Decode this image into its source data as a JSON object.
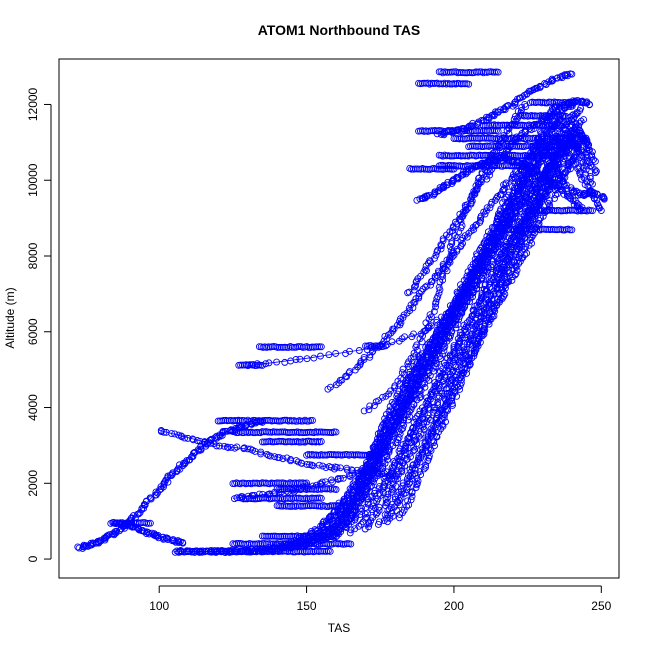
{
  "chart_data": {
    "type": "scatter",
    "title": "ATOM1 Northbound TAS",
    "xlabel": "TAS",
    "ylabel": "Altitude (m)",
    "xlim": [
      66,
      256
    ],
    "ylim": [
      -500,
      13200
    ],
    "x_ticks": [
      100,
      150,
      200,
      250
    ],
    "y_ticks": [
      0,
      2000,
      4000,
      6000,
      8000,
      10000,
      12000
    ],
    "grid": false,
    "legend": "none",
    "point_color": "#0000ff",
    "marker": "open-circle",
    "flight_profiles": [
      {
        "x": [
          73,
          76,
          80,
          84,
          88,
          92,
          96,
          100,
          104,
          108,
          112,
          116,
          120,
          124,
          128,
          132,
          135
        ],
        "y": [
          300,
          380,
          480,
          650,
          850,
          1150,
          1500,
          1850,
          2200,
          2500,
          2800,
          3050,
          3250,
          3400,
          3500,
          3580,
          3650
        ]
      },
      {
        "x": [
          105,
          115,
          125,
          135,
          145,
          155,
          160,
          165,
          168,
          172,
          175,
          180,
          185,
          190,
          195,
          200,
          205,
          210,
          215,
          220,
          225
        ],
        "y": [
          200,
          200,
          200,
          220,
          300,
          500,
          700,
          1000,
          1500,
          2200,
          2900,
          3600,
          4300,
          5000,
          5700,
          6500,
          7300,
          8100,
          8900,
          9600,
          10300
        ]
      },
      {
        "x": [
          110,
          125,
          140,
          150,
          158,
          162,
          165,
          168,
          171,
          174,
          177,
          181,
          185,
          190,
          195,
          200,
          205,
          210,
          215,
          220,
          226,
          232
        ],
        "y": [
          200,
          200,
          250,
          400,
          700,
          1000,
          1400,
          1900,
          2500,
          3100,
          3700,
          4300,
          4900,
          5500,
          6100,
          6700,
          7300,
          7900,
          8500,
          9100,
          9700,
          10300
        ]
      },
      {
        "x": [
          120,
          140,
          152,
          160,
          166,
          170,
          174,
          178,
          182,
          186,
          190,
          195,
          200,
          205,
          210,
          216,
          222,
          228,
          234,
          240
        ],
        "y": [
          200,
          250,
          500,
          900,
          1500,
          2100,
          2700,
          3300,
          3900,
          4500,
          5100,
          5700,
          6300,
          6900,
          7500,
          8100,
          8700,
          9300,
          9900,
          10500
        ]
      },
      {
        "x": [
          130,
          145,
          155,
          162,
          167,
          171,
          175,
          179,
          183,
          187,
          192,
          197,
          202,
          207,
          212,
          217,
          222,
          227,
          232,
          238,
          244
        ],
        "y": [
          200,
          400,
          800,
          1400,
          2000,
          2600,
          3200,
          3800,
          4400,
          5000,
          5600,
          6200,
          6800,
          7400,
          8000,
          8600,
          9200,
          9800,
          10400,
          11000,
          11600
        ]
      },
      {
        "x": [
          138,
          150,
          158,
          164,
          169,
          174,
          178,
          182,
          186,
          190,
          194,
          198,
          202,
          206,
          210,
          214,
          218,
          222,
          226,
          230,
          234,
          238,
          242,
          246
        ],
        "y": [
          250,
          600,
          1100,
          1700,
          2300,
          2900,
          3500,
          4100,
          4700,
          5300,
          5900,
          6500,
          7100,
          7700,
          8300,
          8900,
          9500,
          10100,
          10700,
          11300,
          11900,
          12000,
          12100,
          12000
        ]
      },
      {
        "x": [
          145,
          155,
          162,
          168,
          173,
          177,
          181,
          185,
          189,
          193,
          197,
          201,
          205,
          209,
          213,
          217,
          221,
          225,
          229,
          233,
          237
        ],
        "y": [
          300,
          700,
          1200,
          1800,
          2400,
          3000,
          3600,
          4200,
          4800,
          5400,
          6000,
          6600,
          7200,
          7800,
          8400,
          9000,
          9600,
          10200,
          10800,
          11400,
          11700
        ]
      },
      {
        "x": [
          150,
          160,
          166,
          171,
          175,
          179,
          183,
          187,
          191,
          195,
          199,
          203,
          207,
          211,
          215,
          219,
          223,
          227,
          231,
          235,
          239,
          243,
          247,
          251
        ],
        "y": [
          400,
          900,
          1500,
          2100,
          2700,
          3300,
          3900,
          4500,
          5100,
          5700,
          6300,
          6900,
          7500,
          8100,
          8700,
          9300,
          9900,
          10500,
          10900,
          10300,
          9800,
          9600,
          9700,
          9500
        ]
      },
      {
        "x": [
          155,
          163,
          169,
          174,
          178,
          182,
          186,
          190,
          194,
          198,
          202,
          206,
          210,
          214,
          218,
          222,
          226,
          230,
          234,
          238,
          242,
          246,
          250
        ],
        "y": [
          500,
          1000,
          1600,
          2200,
          2800,
          3400,
          4000,
          4600,
          5200,
          5800,
          6400,
          7000,
          7600,
          8200,
          8800,
          9400,
          10000,
          10600,
          11100,
          10800,
          10300,
          9700,
          9200
        ]
      },
      {
        "x": [
          160,
          168,
          174,
          179,
          183,
          187,
          191,
          195,
          199,
          203,
          207,
          211,
          215,
          219,
          223,
          227,
          231,
          235,
          239,
          243,
          247
        ],
        "y": [
          600,
          1200,
          1800,
          2400,
          3000,
          3600,
          4200,
          4800,
          5400,
          6000,
          6600,
          7200,
          7800,
          8400,
          9000,
          9600,
          10200,
          10800,
          11300,
          10600,
          9900
        ]
      },
      {
        "x": [
          165,
          172,
          177,
          181,
          185,
          189,
          193,
          197,
          201,
          205,
          209,
          213,
          217,
          221,
          225,
          229,
          233,
          237,
          241,
          245
        ],
        "y": [
          700,
          1300,
          1900,
          2500,
          3100,
          3700,
          4300,
          4900,
          5500,
          6100,
          6700,
          7300,
          7900,
          8500,
          9100,
          9700,
          10300,
          10900,
          11500,
          11000
        ]
      },
      {
        "x": [
          170,
          176,
          180,
          184,
          188,
          192,
          196,
          200,
          204,
          208,
          212,
          216,
          220,
          224,
          228,
          232,
          236,
          240,
          244,
          248
        ],
        "y": [
          800,
          1400,
          2000,
          2600,
          3200,
          3800,
          4400,
          5000,
          5600,
          6200,
          6800,
          7400,
          8000,
          8600,
          9200,
          9800,
          10400,
          11000,
          10700,
          10200
        ]
      },
      {
        "x": [
          175,
          180,
          184,
          188,
          192,
          196,
          200,
          204,
          208,
          212,
          216,
          220,
          224,
          228,
          232,
          236,
          240,
          244,
          248
        ],
        "y": [
          900,
          1500,
          2100,
          2700,
          3300,
          3900,
          4500,
          5100,
          5700,
          6300,
          6900,
          7500,
          8100,
          8700,
          9300,
          9900,
          10500,
          11100,
          10500
        ]
      },
      {
        "x": [
          178,
          183,
          187,
          191,
          195,
          199,
          203,
          207,
          211,
          215,
          219,
          223,
          227,
          231,
          235,
          239,
          243
        ],
        "y": [
          1000,
          1700,
          2400,
          3100,
          3800,
          4500,
          5200,
          5900,
          6600,
          7300,
          8000,
          8700,
          9400,
          10100,
          10800,
          11500,
          11900
        ]
      },
      {
        "x": [
          182,
          186,
          190,
          194,
          198,
          202,
          206,
          210,
          214,
          218,
          222,
          226,
          230,
          234,
          238,
          242,
          246
        ],
        "y": [
          1100,
          1800,
          2500,
          3200,
          3900,
          4600,
          5300,
          6000,
          6700,
          7400,
          8100,
          8800,
          9500,
          10200,
          10900,
          11300,
          10800
        ]
      },
      {
        "x": [
          130,
          150,
          175,
          190,
          200,
          205,
          210,
          215,
          220,
          225,
          230,
          235,
          240
        ],
        "y": [
          5100,
          5300,
          5600,
          6000,
          6600,
          7300,
          8000,
          8700,
          9400,
          10000,
          10600,
          11200,
          11700
        ]
      },
      {
        "x": [
          170,
          180,
          185,
          190,
          194,
          197,
          200,
          204,
          208,
          212,
          216,
          220,
          224
        ],
        "y": [
          3900,
          4500,
          5200,
          6000,
          6800,
          7600,
          8400,
          9200,
          9900,
          10500,
          11000,
          11500,
          12000
        ]
      },
      {
        "x": [
          185,
          190,
          195,
          200,
          205,
          210,
          215,
          220,
          225,
          230,
          235,
          240
        ],
        "y": [
          7000,
          7600,
          8200,
          8800,
          9400,
          10000,
          10500,
          11000,
          11300,
          11600,
          11800,
          12000
        ]
      },
      {
        "x": [
          195,
          200,
          205,
          210,
          215,
          220,
          225,
          230,
          235,
          240
        ],
        "y": [
          11200,
          11300,
          11400,
          11600,
          11800,
          12000,
          12300,
          12500,
          12700,
          12800
        ]
      },
      {
        "x": [
          188,
          192,
          196,
          200,
          204,
          208,
          212,
          216,
          220,
          224,
          228,
          232,
          236,
          240,
          244
        ],
        "y": [
          9500,
          9600,
          9800,
          10000,
          10200,
          10400,
          10500,
          10600,
          10500,
          10400,
          10200,
          10000,
          9800,
          9500,
          9200
        ]
      },
      {
        "x": [
          100,
          110,
          120,
          130,
          140,
          150,
          160,
          170,
          180
        ],
        "y": [
          3400,
          3200,
          3000,
          2900,
          2700,
          2500,
          2400,
          2300,
          2200
        ]
      },
      {
        "x": [
          125,
          135,
          145,
          155,
          165,
          175
        ],
        "y": [
          1600,
          1700,
          1800,
          2000,
          2200,
          2400
        ]
      },
      {
        "x": [
          84,
          88,
          92,
          96,
          100,
          104,
          108
        ],
        "y": [
          950,
          900,
          850,
          700,
          600,
          500,
          420
        ]
      },
      {
        "x": [
          158,
          166,
          173,
          179,
          184,
          189,
          194,
          199,
          204,
          209,
          214,
          219,
          224,
          229,
          234
        ],
        "y": [
          4500,
          5000,
          5500,
          6000,
          6500,
          7000,
          7500,
          8000,
          8500,
          9000,
          9500,
          10000,
          10500,
          11000,
          11400
        ]
      }
    ],
    "level_segments": [
      {
        "y": 12850,
        "x_from": 195,
        "x_to": 215
      },
      {
        "y": 12550,
        "x_from": 188,
        "x_to": 205
      },
      {
        "y": 11300,
        "x_from": 188,
        "x_to": 215
      },
      {
        "y": 12050,
        "x_from": 226,
        "x_to": 241
      },
      {
        "y": 11700,
        "x_from": 222,
        "x_to": 238
      },
      {
        "y": 11450,
        "x_from": 210,
        "x_to": 236
      },
      {
        "y": 11100,
        "x_from": 200,
        "x_to": 244
      },
      {
        "y": 10900,
        "x_from": 205,
        "x_to": 242
      },
      {
        "y": 10650,
        "x_from": 195,
        "x_to": 236
      },
      {
        "y": 10380,
        "x_from": 195,
        "x_to": 224
      },
      {
        "y": 10300,
        "x_from": 185,
        "x_to": 200
      },
      {
        "y": 9200,
        "x_from": 225,
        "x_to": 247
      },
      {
        "y": 8700,
        "x_from": 218,
        "x_to": 240
      },
      {
        "y": 5600,
        "x_from": 134,
        "x_to": 155
      },
      {
        "y": 5620,
        "x_from": 170,
        "x_to": 176
      },
      {
        "y": 5120,
        "x_from": 127,
        "x_to": 135
      },
      {
        "y": 3650,
        "x_from": 120,
        "x_to": 152
      },
      {
        "y": 3350,
        "x_from": 125,
        "x_to": 160
      },
      {
        "y": 3100,
        "x_from": 135,
        "x_to": 155
      },
      {
        "y": 2750,
        "x_from": 150,
        "x_to": 175
      },
      {
        "y": 2000,
        "x_from": 125,
        "x_to": 150
      },
      {
        "y": 1850,
        "x_from": 140,
        "x_to": 160
      },
      {
        "y": 1600,
        "x_from": 128,
        "x_to": 155
      },
      {
        "y": 1400,
        "x_from": 140,
        "x_to": 165
      },
      {
        "y": 950,
        "x_from": 85,
        "x_to": 97
      },
      {
        "y": 600,
        "x_from": 135,
        "x_to": 160
      },
      {
        "y": 400,
        "x_from": 125,
        "x_to": 165
      },
      {
        "y": 200,
        "x_from": 106,
        "x_to": 158
      }
    ]
  }
}
